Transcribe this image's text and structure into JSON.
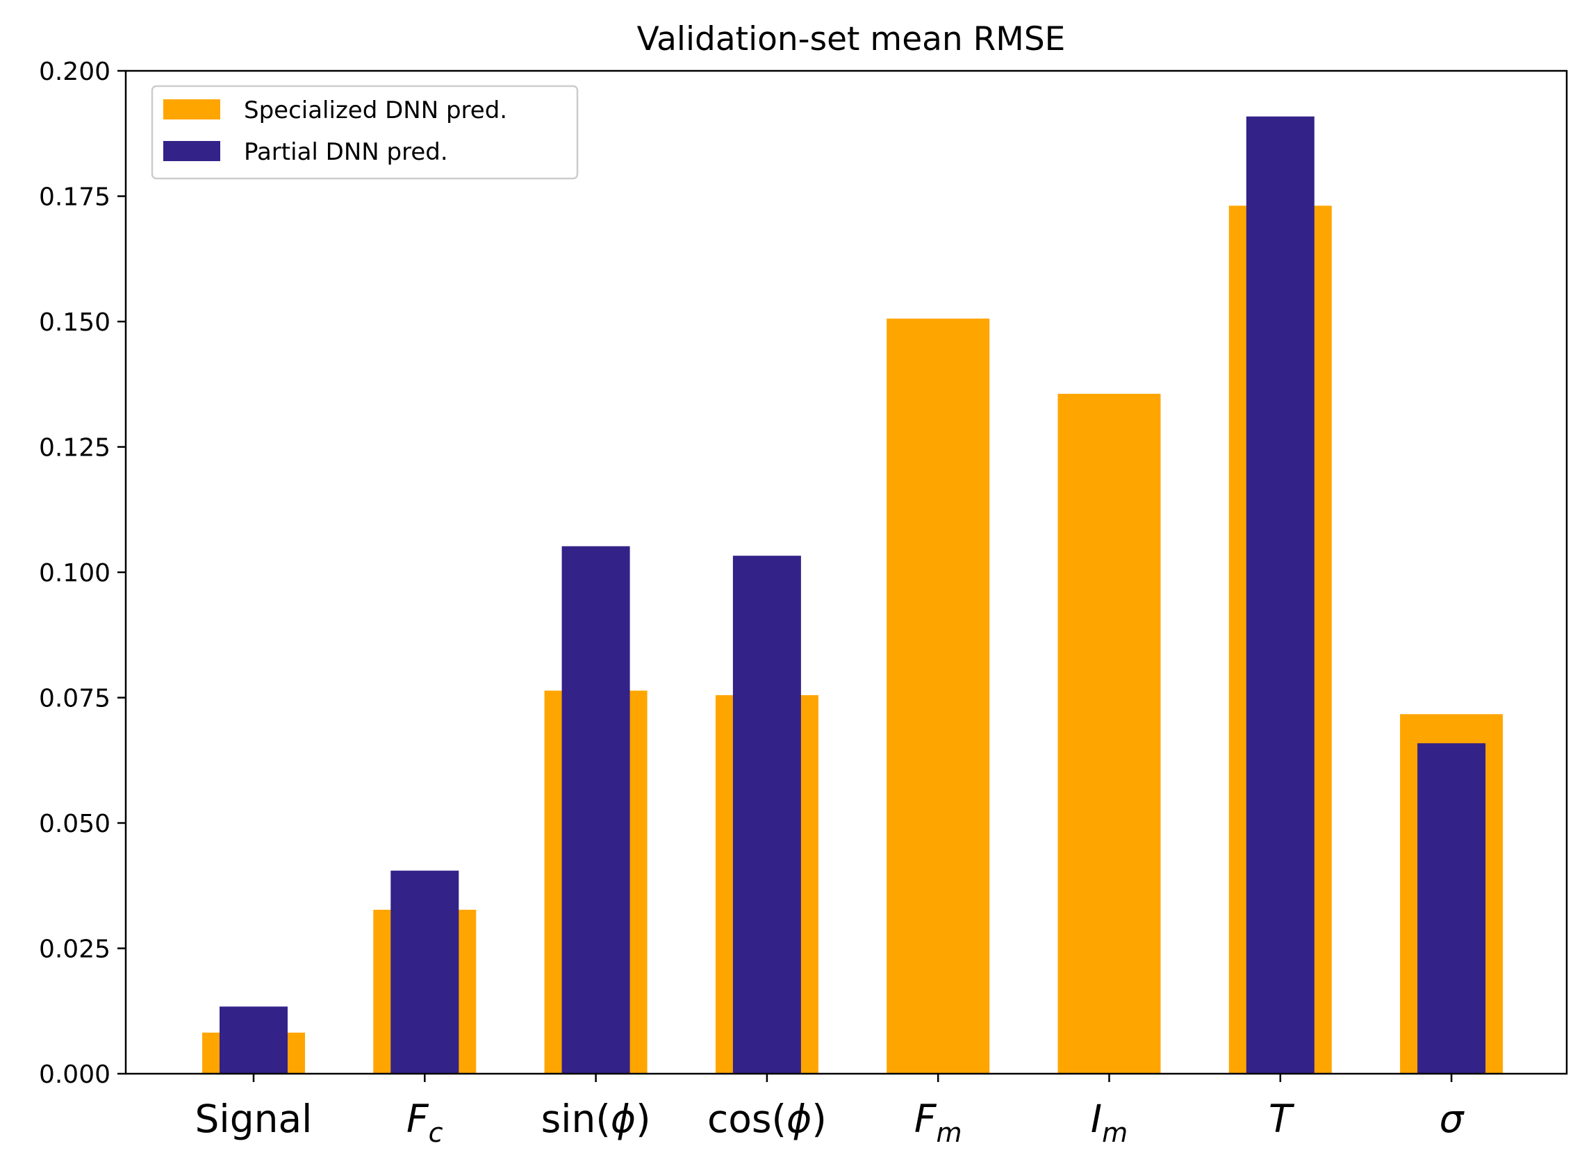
{
  "chart_data": {
    "type": "bar",
    "title": "Validation-set mean RMSE",
    "xlabel": "",
    "ylabel": "",
    "ylim": [
      0,
      0.2
    ],
    "yticks": [
      "0.000",
      "0.025",
      "0.050",
      "0.075",
      "0.100",
      "0.125",
      "0.150",
      "0.175",
      "0.200"
    ],
    "categories": [
      {
        "parts": [
          {
            "t": "Signal",
            "i": false
          }
        ]
      },
      {
        "parts": [
          {
            "t": "F",
            "i": true
          },
          {
            "t": "c",
            "i": true,
            "sub": true
          }
        ]
      },
      {
        "parts": [
          {
            "t": "sin(",
            "i": false
          },
          {
            "t": "ϕ",
            "i": true
          },
          {
            "t": ")",
            "i": false
          }
        ]
      },
      {
        "parts": [
          {
            "t": "cos(",
            "i": false
          },
          {
            "t": "ϕ",
            "i": true
          },
          {
            "t": ")",
            "i": false
          }
        ]
      },
      {
        "parts": [
          {
            "t": "F",
            "i": true
          },
          {
            "t": "m",
            "i": true,
            "sub": true
          }
        ]
      },
      {
        "parts": [
          {
            "t": "I",
            "i": true
          },
          {
            "t": "m",
            "i": true,
            "sub": true
          }
        ]
      },
      {
        "parts": [
          {
            "t": "T",
            "i": true
          }
        ]
      },
      {
        "parts": [
          {
            "t": "σ",
            "i": true
          }
        ]
      }
    ],
    "grid": false,
    "legend_position": "top-left",
    "series": [
      {
        "name": "Specialized DNN pred.",
        "color": "#ffa500",
        "values": [
          0.0082,
          0.0327,
          0.0764,
          0.0755,
          0.1506,
          0.1356,
          0.1731,
          0.0717
        ]
      },
      {
        "name": "Partial DNN pred.",
        "color": "#332288",
        "values": [
          0.0134,
          0.0405,
          0.1052,
          0.1033,
          null,
          null,
          0.1909,
          0.0659
        ]
      }
    ]
  }
}
